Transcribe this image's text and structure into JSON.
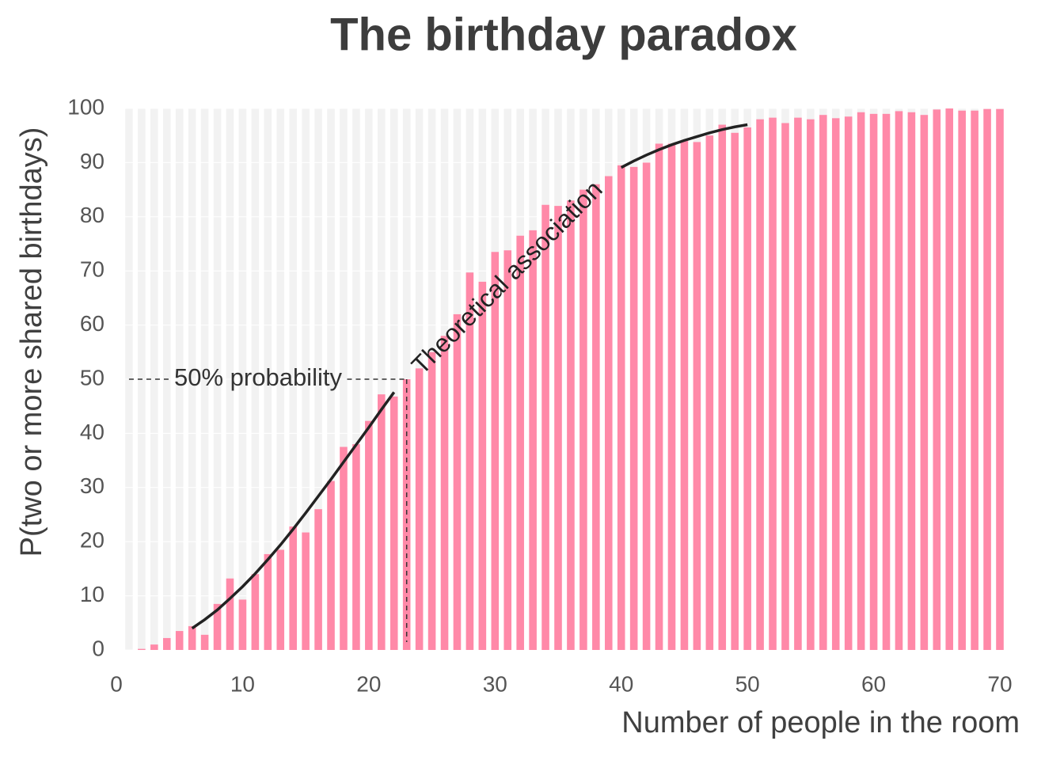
{
  "chart_data": {
    "type": "bar",
    "title": "The birthday paradox",
    "x_label": "Number of people in the room",
    "y_label": "P(two or more shared birthdays)",
    "x": [
      1,
      2,
      3,
      4,
      5,
      6,
      7,
      8,
      9,
      10,
      11,
      12,
      13,
      14,
      15,
      16,
      17,
      18,
      19,
      20,
      21,
      22,
      23,
      24,
      25,
      26,
      27,
      28,
      29,
      30,
      31,
      32,
      33,
      34,
      35,
      36,
      37,
      38,
      39,
      40,
      41,
      42,
      43,
      44,
      45,
      46,
      47,
      48,
      49,
      50,
      51,
      52,
      53,
      54,
      55,
      56,
      57,
      58,
      59,
      60,
      61,
      62,
      63,
      64,
      65,
      66,
      67,
      68,
      69,
      70
    ],
    "values": [
      0,
      0.2,
      1,
      2.2,
      3.5,
      4.4,
      2.8,
      8.5,
      13.2,
      9.3,
      14,
      17.7,
      18.5,
      22.8,
      21.7,
      26,
      31.2,
      37.5,
      38,
      42.3,
      47.2,
      46.8,
      50,
      52,
      55,
      58,
      62,
      69.7,
      68,
      73.5,
      73.8,
      76.5,
      77.5,
      82.2,
      82,
      83,
      85,
      86,
      87.5,
      89.5,
      89.2,
      90,
      93.5,
      93.5,
      94,
      93.8,
      95,
      97,
      95.5,
      96.5,
      98,
      98.3,
      97.3,
      98.3,
      98,
      98.8,
      98.2,
      98.5,
      99.3,
      99,
      99,
      99.5,
      99.3,
      98.8,
      99.8,
      100,
      99.6,
      99.6,
      99.9,
      99.9
    ],
    "color": "#ff89a8",
    "theory": {
      "label": "Theoretical association",
      "color": "#222222",
      "x": [
        6,
        7,
        8,
        9,
        10,
        11,
        12,
        13,
        14,
        15,
        16,
        17,
        18,
        19,
        20,
        21,
        22,
        23,
        24,
        25,
        26,
        27,
        28,
        29,
        30,
        31,
        32,
        33,
        34,
        35,
        36,
        37,
        38,
        39,
        40,
        41,
        42,
        43,
        44,
        45,
        46,
        47,
        48,
        49,
        50
      ],
      "values": [
        4.0,
        5.6,
        7.4,
        9.5,
        11.7,
        14.1,
        16.7,
        19.4,
        22.3,
        25.3,
        28.4,
        31.5,
        34.7,
        37.9,
        41.1,
        44.4,
        47.6,
        null,
        null,
        null,
        null,
        null,
        null,
        null,
        null,
        null,
        null,
        null,
        null,
        null,
        null,
        null,
        null,
        null,
        89.1,
        90.3,
        91.4,
        92.4,
        93.3,
        94.1,
        94.8,
        95.5,
        96.1,
        96.6,
        97.0
      ]
    },
    "reference": {
      "label": "50% probability",
      "x": 23,
      "y": 50
    },
    "xlim": [
      0,
      70
    ],
    "xticks": [
      0,
      10,
      20,
      30,
      40,
      50,
      60,
      70
    ],
    "ylim": [
      0,
      100
    ],
    "yticks": [
      0,
      10,
      20,
      30,
      40,
      50,
      60,
      70,
      80,
      90,
      100
    ]
  }
}
